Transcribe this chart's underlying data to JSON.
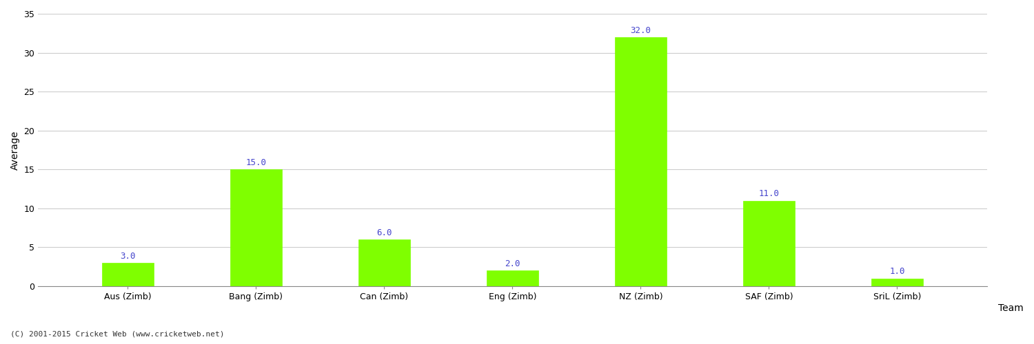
{
  "categories": [
    "Aus (Zimb)",
    "Bang (Zimb)",
    "Can (Zimb)",
    "Eng (Zimb)",
    "NZ (Zimb)",
    "SAF (Zimb)",
    "SriL (Zimb)"
  ],
  "values": [
    3.0,
    15.0,
    6.0,
    2.0,
    32.0,
    11.0,
    1.0
  ],
  "bar_color": "#7fff00",
  "bar_edge_color": "#7fff00",
  "value_label_color": "#4444cc",
  "value_label_fontsize": 9,
  "xlabel": "Team",
  "ylabel": "Average",
  "ylim": [
    0,
    35
  ],
  "yticks": [
    0,
    5,
    10,
    15,
    20,
    25,
    30,
    35
  ],
  "grid_color": "#cccccc",
  "background_color": "#ffffff",
  "footer_text": "(C) 2001-2015 Cricket Web (www.cricketweb.net)",
  "footer_fontsize": 8,
  "footer_color": "#333333",
  "xlabel_fontsize": 10,
  "ylabel_fontsize": 10,
  "tick_fontsize": 9,
  "bar_width": 0.4
}
